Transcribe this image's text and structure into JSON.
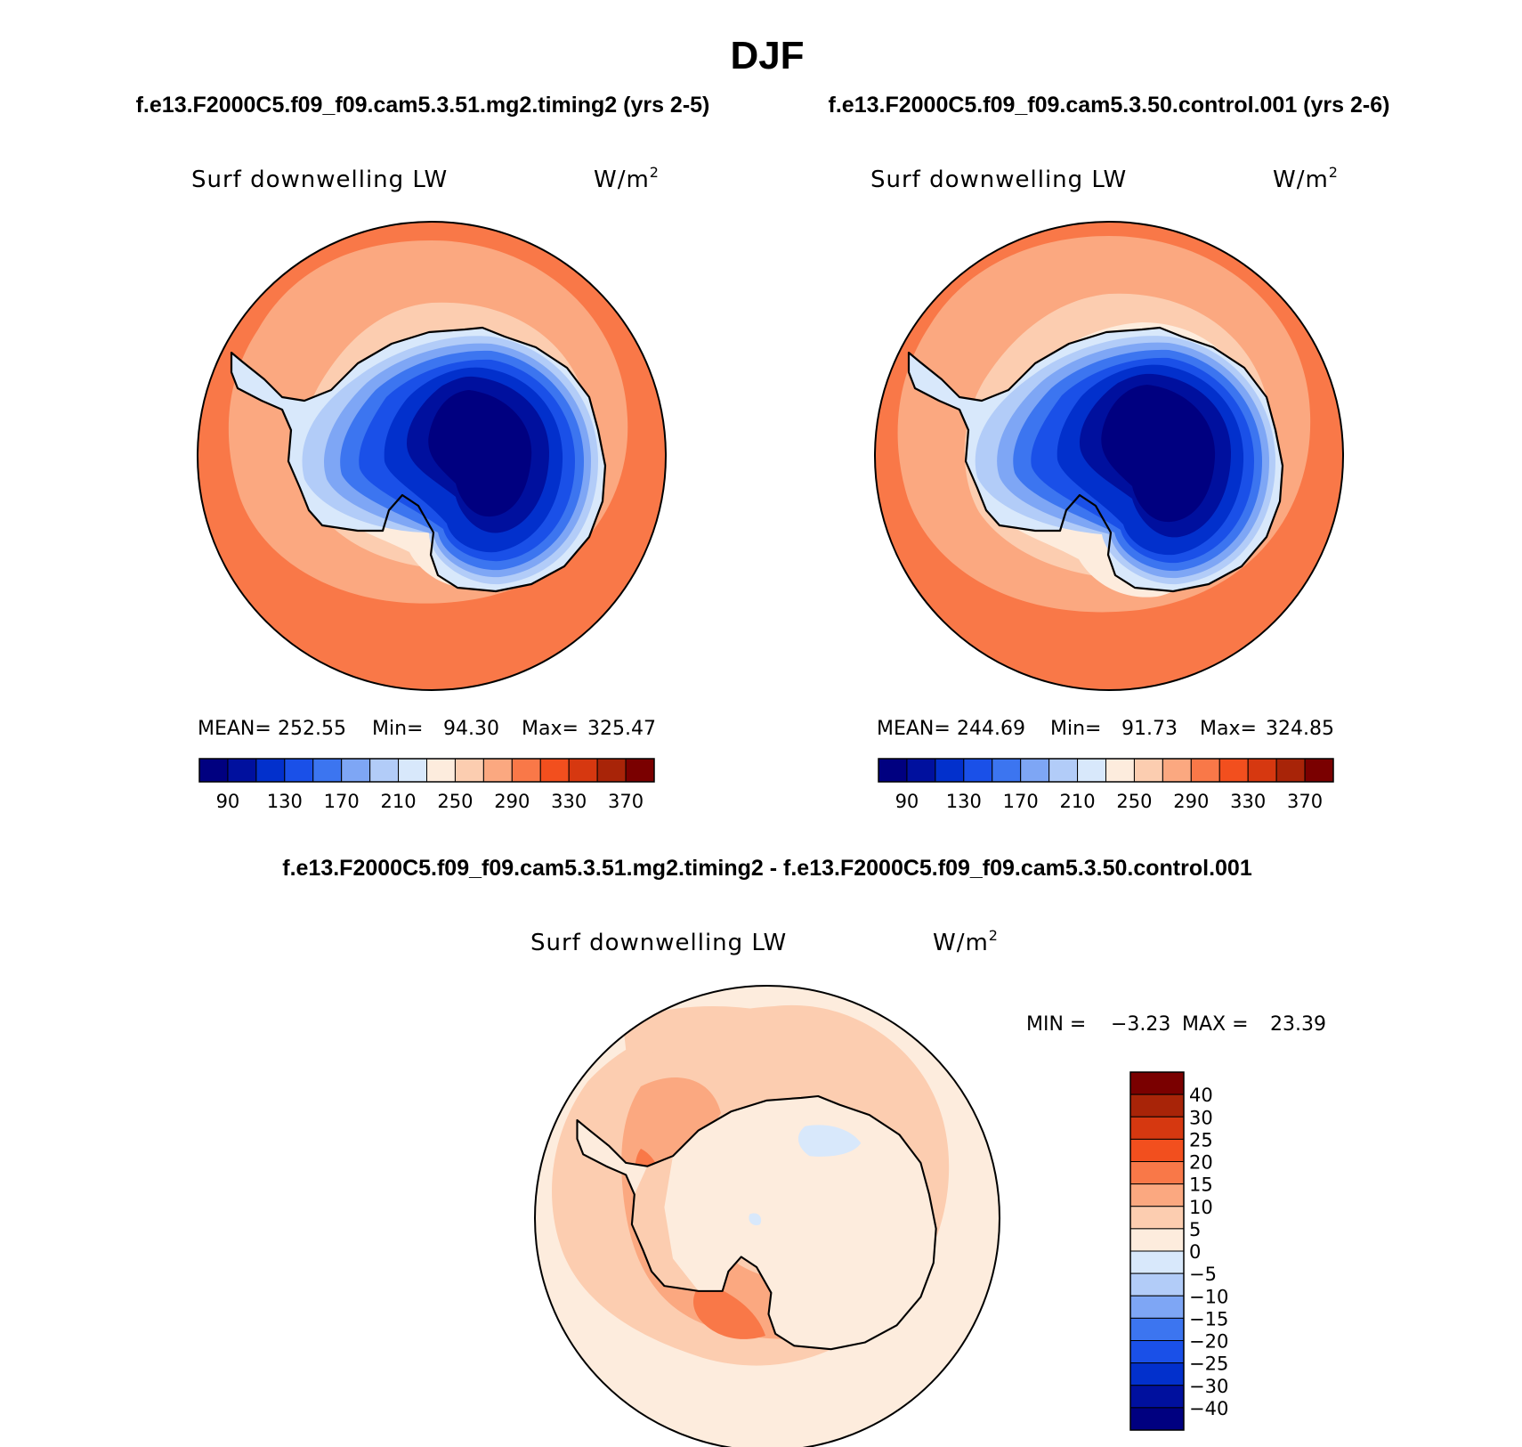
{
  "title": "DJF",
  "colors": {
    "abs": [
      "#000080",
      "#00109E",
      "#0230CC",
      "#1A50E8",
      "#3C75F0",
      "#7EA6F5",
      "#B2CCF8",
      "#D8E8FB",
      "#FDECDD",
      "#FCCDB0",
      "#FBA880",
      "#F97848",
      "#F24F1E",
      "#D63810",
      "#A82408",
      "#7A0000"
    ],
    "diff": [
      "#000080",
      "#00109E",
      "#0230CC",
      "#1A50E8",
      "#3C75F0",
      "#7EA6F5",
      "#B2CCF8",
      "#D8E8FB",
      "#FDECDD",
      "#FCCDB0",
      "#FBA880",
      "#F97848",
      "#F24F1E",
      "#D63810",
      "#A82408",
      "#7A0000"
    ]
  },
  "panels": [
    {
      "case": "f.e13.F2000C5.f09_f09.cam5.3.51.mg2.timing2 (yrs 2-5)",
      "variable": "Surf downwelling LW",
      "units_base": "W/m",
      "units_exp": "2",
      "stats": {
        "mean_label": "MEAN=",
        "mean": "252.55",
        "min_label": "Min=",
        "min": "94.30",
        "max_label": "Max=",
        "max": "325.47"
      },
      "colorbar_labels": [
        "90",
        "130",
        "170",
        "210",
        "250",
        "290",
        "330",
        "370"
      ]
    },
    {
      "case": "f.e13.F2000C5.f09_f09.cam5.3.50.control.001 (yrs 2-6)",
      "variable": "Surf downwelling LW",
      "units_base": "W/m",
      "units_exp": "2",
      "stats": {
        "mean_label": "MEAN=",
        "mean": "244.69",
        "min_label": "Min=",
        "min": "91.73",
        "max_label": "Max=",
        "max": "324.85"
      },
      "colorbar_labels": [
        "90",
        "130",
        "170",
        "210",
        "250",
        "290",
        "330",
        "370"
      ]
    }
  ],
  "difference": {
    "case": "f.e13.F2000C5.f09_f09.cam5.3.51.mg2.timing2 - f.e13.F2000C5.f09_f09.cam5.3.50.control.001",
    "variable": "Surf downwelling LW",
    "units_base": "W/m",
    "units_exp": "2",
    "stats": {
      "min_label": "MIN =",
      "min": "−3.23",
      "max_label": "MAX =",
      "max": "23.39"
    },
    "colorbar_labels": [
      "40",
      "30",
      "25",
      "20",
      "15",
      "10",
      "5",
      "0",
      "−5",
      "−10",
      "−15",
      "−20",
      "−25",
      "−30",
      "−40"
    ]
  }
}
